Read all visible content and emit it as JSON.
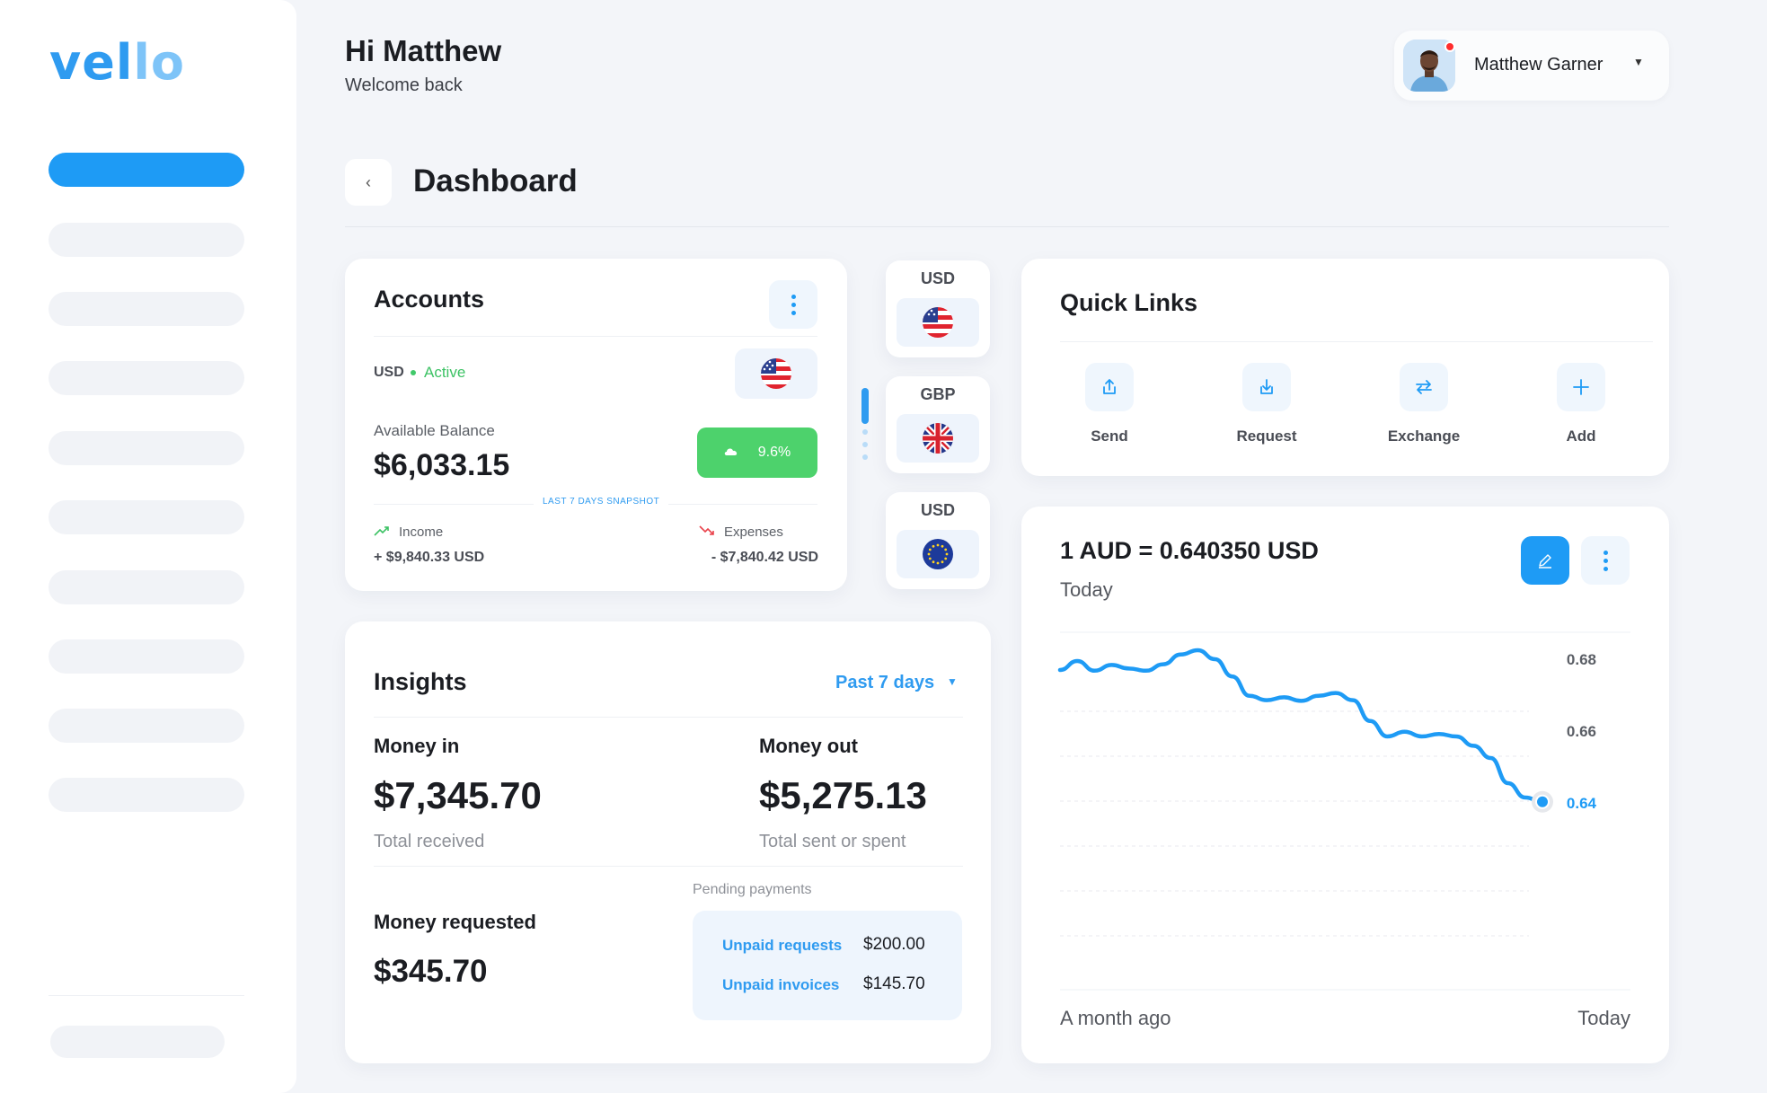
{
  "app": {
    "logo_main": "vel",
    "logo_accent": "lo"
  },
  "header": {
    "greeting": "Hi Matthew",
    "welcome": "Welcome back",
    "user_name": "Matthew Garner",
    "page_title": "Dashboard"
  },
  "accounts": {
    "title": "Accounts",
    "currency": "USD",
    "status": "Active",
    "available_label": "Available Balance",
    "available_value": "$6,033.15",
    "growth": "9.6%",
    "snapshot_label": "LAST 7 DAYS SNAPSHOT",
    "income_label": "Income",
    "income_value": "+ $9,840.33 USD",
    "expenses_label": "Expenses",
    "expenses_value": "- $7,840.42 USD"
  },
  "currency_tiles": [
    {
      "code": "USD",
      "flag": "us-flag"
    },
    {
      "code": "GBP",
      "flag": "uk-flag"
    },
    {
      "code": "USD",
      "flag": "eu-flag"
    }
  ],
  "quick_links": {
    "title": "Quick Links",
    "items": [
      {
        "label": "Send",
        "icon": "upload-icon"
      },
      {
        "label": "Request",
        "icon": "download-icon"
      },
      {
        "label": "Exchange",
        "icon": "exchange-icon"
      },
      {
        "label": "Add",
        "icon": "plus-icon"
      }
    ]
  },
  "rate": {
    "title": "1 AUD = 0.640350 USD",
    "subtitle": "Today",
    "x_left": "A month ago",
    "x_right": "Today"
  },
  "chart_data": {
    "type": "line",
    "title": "",
    "xlabel": "",
    "ylabel": "",
    "ylim": [
      0.615,
      0.695
    ],
    "yticks": [
      0.68,
      0.66,
      0.64
    ],
    "ytick_labels": [
      "0.68",
      "0.66",
      "0.64"
    ],
    "x_range_labels": [
      "A month ago",
      "Today"
    ],
    "grid": true,
    "highlight_last": true,
    "color": "#1e9bf5",
    "series": [
      {
        "values": [
          0.677,
          0.6795,
          0.6768,
          0.6784,
          0.6774,
          0.6768,
          0.6786,
          0.6813,
          0.6825,
          0.68,
          0.6752,
          0.6698,
          0.6686,
          0.6694,
          0.6684,
          0.6698,
          0.6706,
          0.6686,
          0.6628,
          0.6585,
          0.6598,
          0.6585,
          0.6592,
          0.6585,
          0.6559,
          0.6525,
          0.6455,
          0.6415,
          0.6403
        ]
      }
    ]
  },
  "insights": {
    "title": "Insights",
    "period": "Past 7 days",
    "money_in_label": "Money in",
    "money_in_value": "$7,345.70",
    "money_in_sub": "Total received",
    "money_out_label": "Money out",
    "money_out_value": "$5,275.13",
    "money_out_sub": "Total sent or spent",
    "requested_label": "Money requested",
    "requested_value": "$345.70",
    "pending_label": "Pending payments",
    "pending": [
      {
        "name": "Unpaid requests",
        "value": "$200.00"
      },
      {
        "name": "Unpaid invoices",
        "value": "$145.70"
      }
    ]
  }
}
